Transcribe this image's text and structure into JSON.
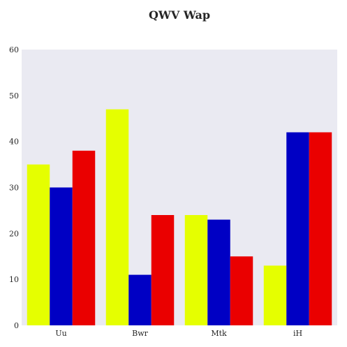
{
  "chart_data": {
    "type": "bar",
    "title": "QWV Wap",
    "xlabel": "",
    "ylabel": "",
    "categories": [
      "Uu",
      "Bwr",
      "Mtk",
      "iH"
    ],
    "series": [
      {
        "values": [
          35,
          47,
          24,
          13
        ],
        "color": "#e5ff00"
      },
      {
        "values": [
          30,
          11,
          23,
          42
        ],
        "color": "#0000c4"
      },
      {
        "values": [
          38,
          24,
          15,
          42
        ],
        "color": "#ea0000"
      }
    ],
    "ylim": [
      0,
      60
    ],
    "yticks": [
      0,
      10,
      20,
      30,
      40,
      50,
      60
    ],
    "grid": false,
    "legend": "none",
    "plot_background": "#eaeaf2"
  }
}
